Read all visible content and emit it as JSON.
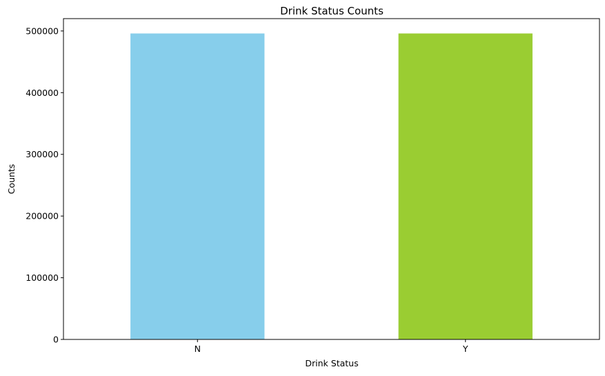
{
  "chart_data": {
    "type": "bar",
    "title": "Drink Status Counts",
    "xlabel": "Drink Status",
    "ylabel": "Counts",
    "categories": [
      "N",
      "Y"
    ],
    "values": [
      496000,
      496000
    ],
    "colors": [
      "#87CEEB",
      "#9ACD32"
    ],
    "ylim": [
      0,
      520000
    ],
    "yticks": [
      0,
      100000,
      200000,
      300000,
      400000,
      500000
    ],
    "ytick_labels": [
      "0",
      "100000",
      "200000",
      "300000",
      "400000",
      "500000"
    ],
    "grid": false,
    "legend": "none"
  }
}
